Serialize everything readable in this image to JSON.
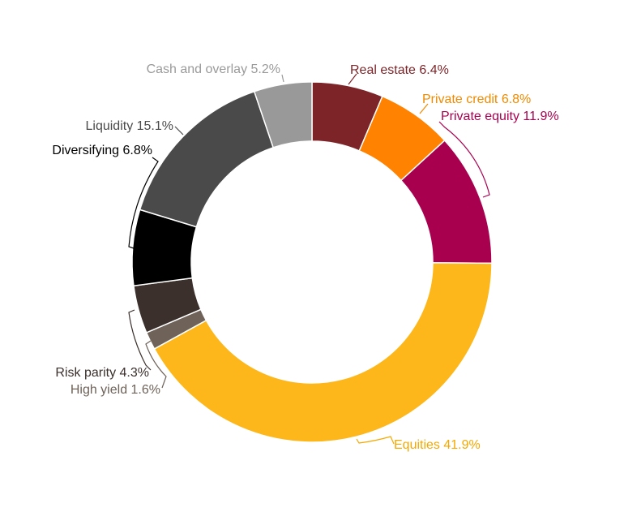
{
  "chart_data": {
    "type": "pie",
    "variant": "donut",
    "start_angle_deg": 0,
    "direction": "clockwise",
    "slices": [
      {
        "label": "Real estate",
        "value": 6.4,
        "display": "Real estate 6.4%",
        "color": "#7d2428",
        "label_color": "#7d2428"
      },
      {
        "label": "Private credit",
        "value": 6.8,
        "display": "Private credit 6.8%",
        "color": "#ff8200",
        "label_color": "#f08a00"
      },
      {
        "label": "Private equity",
        "value": 11.9,
        "display": "Private equity 11.9%",
        "color": "#a8004f",
        "label_color": "#a8004f"
      },
      {
        "label": "Equities",
        "value": 41.9,
        "display": "Equities 41.9%",
        "color": "#fdb71a",
        "label_color": "#f5a800"
      },
      {
        "label": "High yield",
        "value": 1.6,
        "display": "High yield 1.6%",
        "color": "#6e6259",
        "label_color": "#6e6259"
      },
      {
        "label": "Risk parity",
        "value": 4.3,
        "display": "Risk parity 4.3%",
        "color": "#3b302c",
        "label_color": "#3b302c"
      },
      {
        "label": "Diversifying",
        "value": 6.8,
        "display": "Diversifying 6.8%",
        "color": "#000000",
        "label_color": "#000000"
      },
      {
        "label": "Liquidity",
        "value": 15.1,
        "display": "Liquidity 15.1%",
        "color": "#4a4a4a",
        "label_color": "#4a4a4a"
      },
      {
        "label": "Cash and overlay",
        "value": 5.2,
        "display": "Cash and overlay 5.2%",
        "color": "#999999",
        "label_color": "#9a9a9a"
      }
    ]
  }
}
